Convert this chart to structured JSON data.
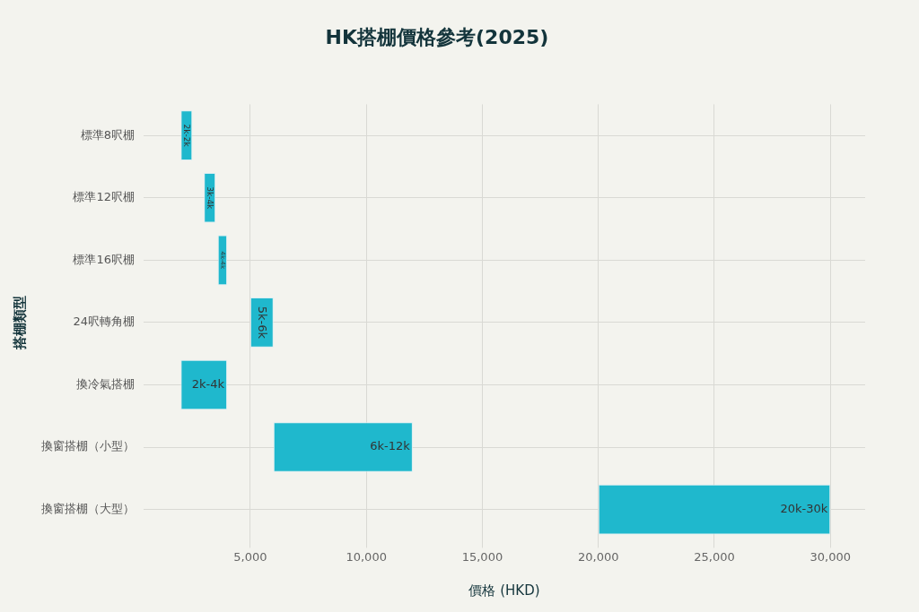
{
  "chart_data": {
    "type": "bar",
    "orientation": "horizontal",
    "title": "HK搭棚價格參考(2025)",
    "xlabel": "價格 (HKD)",
    "ylabel": "搭棚類型",
    "categories": [
      "標準8呎棚",
      "標準12呎棚",
      "標準16呎棚",
      "24呎轉角棚",
      "換冷氣搭棚",
      "換窗搭棚（小型）",
      "換窗搭棚（大型）"
    ],
    "base": [
      2000,
      3000,
      3600,
      5000,
      2000,
      6000,
      20000
    ],
    "values": [
      500,
      500,
      400,
      1000,
      2000,
      6000,
      10000
    ],
    "annotations": [
      {
        "text": "2k-2k",
        "x": 2500,
        "y": "標準8呎棚"
      },
      {
        "text": "3k-4k",
        "x": 3500,
        "y": "標準12呎棚"
      },
      {
        "text": "4k-4k",
        "x": 4000,
        "y": "標準16呎棚"
      },
      {
        "text": "5k-6k",
        "x": 6000,
        "y": "24呎轉角棚"
      },
      {
        "text": "2k-4k",
        "x": 4000,
        "y": "換冷氣搭棚"
      },
      {
        "text": "6k-12k",
        "x": 12000,
        "y": "換窗搭棚（小型）"
      },
      {
        "text": "20k-30k",
        "x": 30000,
        "y": "換窗搭棚（大型）"
      }
    ],
    "color": "#1fb8cd",
    "xlim": [
      400,
      31500
    ],
    "xticks": [
      {
        "value": 5000,
        "label": "5,000"
      },
      {
        "value": 10000,
        "label": "10,000"
      },
      {
        "value": 15000,
        "label": "15,000"
      },
      {
        "value": 20000,
        "label": "20,000"
      },
      {
        "value": 25000,
        "label": "25,000"
      },
      {
        "value": 30000,
        "label": "30,000"
      }
    ],
    "grid": true,
    "legend": false
  }
}
